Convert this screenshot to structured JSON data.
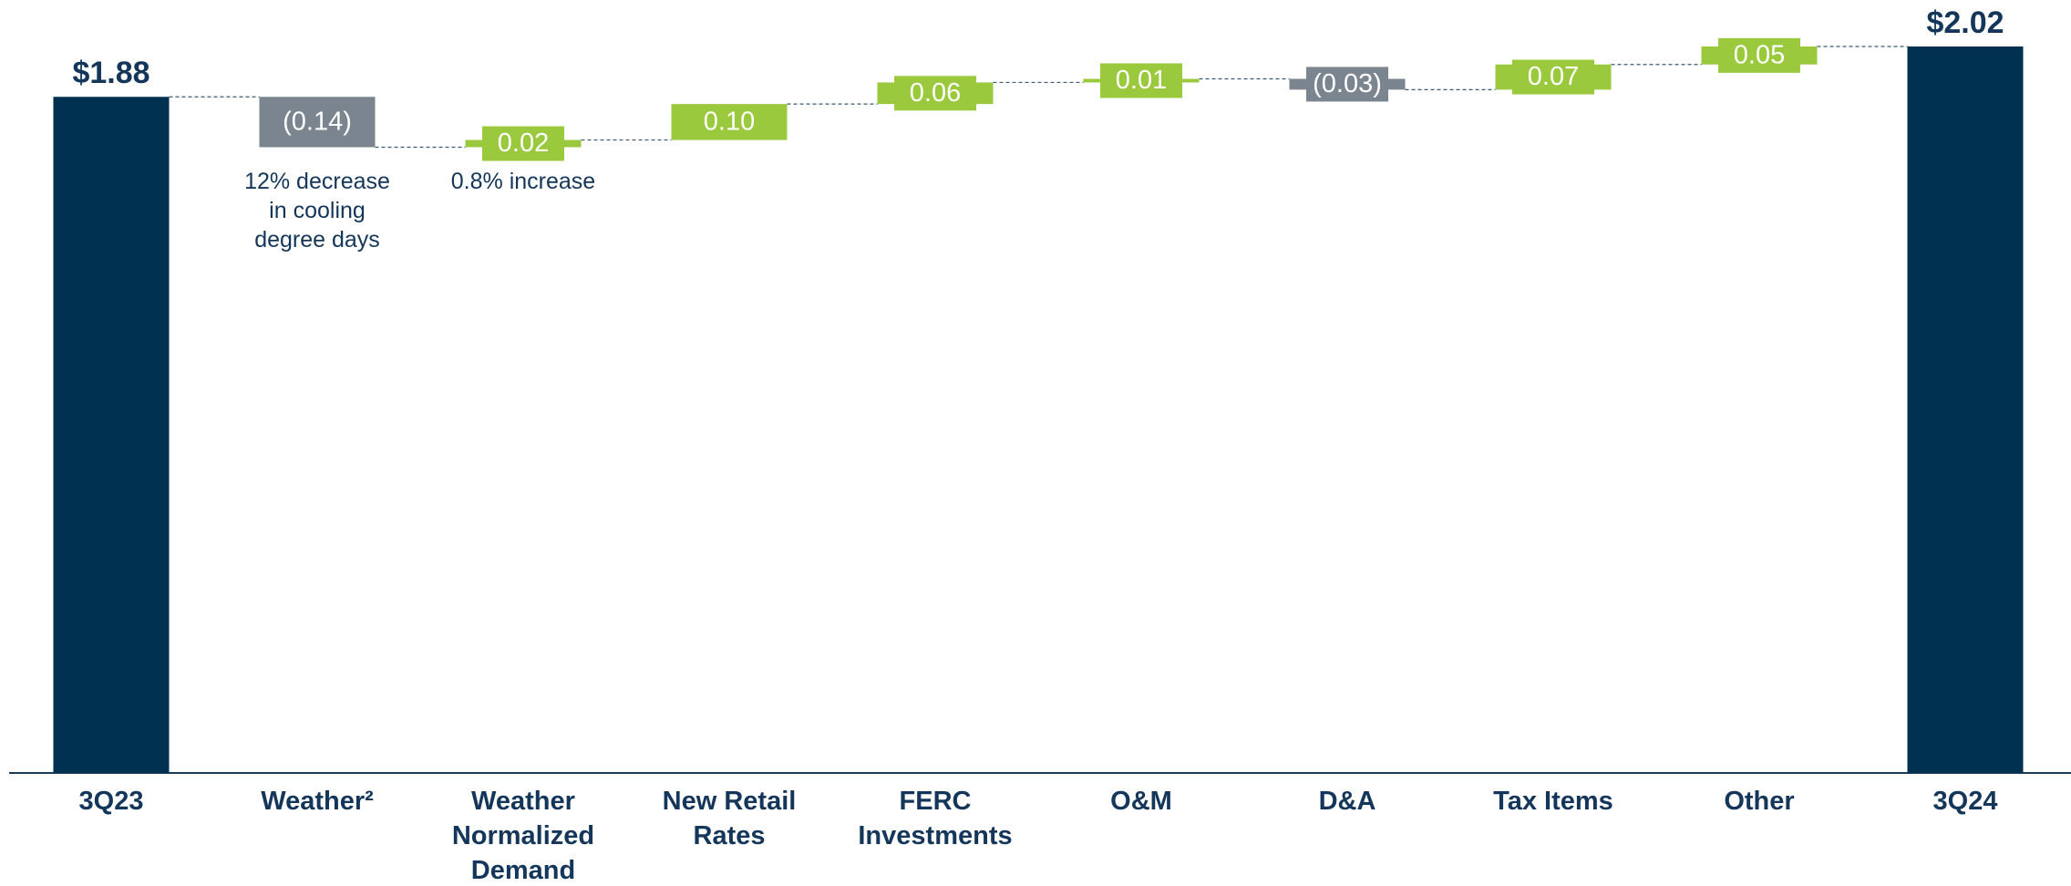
{
  "chart_data": {
    "type": "waterfall",
    "categories": [
      "3Q23",
      "Weather²",
      "Weather Normalized Demand",
      "New Retail Rates",
      "FERC Investments",
      "O&M",
      "D&A",
      "Tax Items",
      "Other",
      "3Q24"
    ],
    "values": [
      1.88,
      -0.14,
      0.02,
      0.1,
      0.06,
      0.01,
      -0.03,
      0.07,
      0.05,
      2.02
    ],
    "value_labels": [
      "$1.88",
      "(0.14)",
      "0.02",
      "0.10",
      "0.06",
      "0.01",
      "(0.03)",
      "0.07",
      "0.05",
      "$2.02"
    ],
    "is_total": [
      true,
      false,
      false,
      false,
      false,
      false,
      false,
      false,
      false,
      true
    ],
    "annotations": [
      null,
      "12% decrease in cooling degree days",
      "0.8% increase",
      null,
      null,
      null,
      null,
      null,
      null,
      null
    ],
    "colors": {
      "total": "#003150",
      "increase": "#9ac93d",
      "decrease": "#7b858f"
    }
  }
}
